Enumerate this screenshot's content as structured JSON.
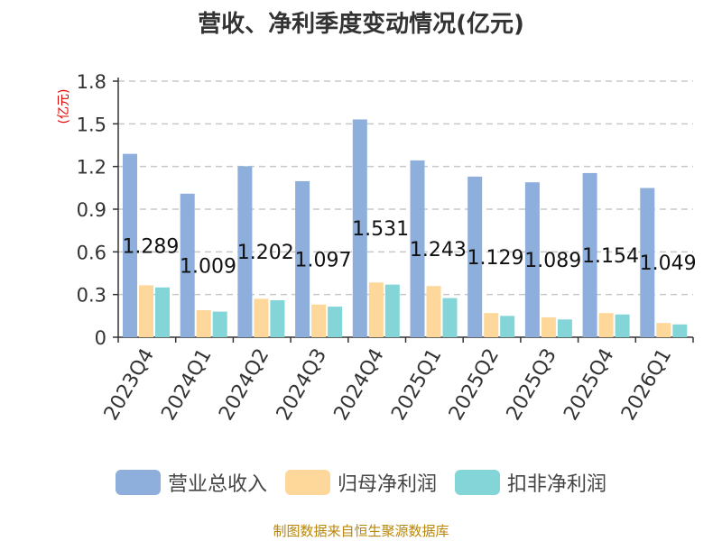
{
  "chart_data": {
    "type": "bar",
    "title": "营收、净利季度变动情况(亿元)",
    "ylabel": "(亿元)",
    "ylim": [
      0,
      1.8
    ],
    "yticks": [
      "0",
      "0.3",
      "0.6",
      "0.9",
      "1.2",
      "1.5",
      "1.8"
    ],
    "grid": true,
    "categories": [
      "2023Q4",
      "2024Q1",
      "2024Q2",
      "2024Q3",
      "2024Q4",
      "2025Q1",
      "2025Q2",
      "2025Q3",
      "2025Q4",
      "2026Q1"
    ],
    "series": [
      {
        "name": "营业总收入",
        "color": "#8eaedb",
        "values": [
          1.289,
          1.009,
          1.202,
          1.097,
          1.531,
          1.243,
          1.129,
          1.089,
          1.154,
          1.049
        ],
        "labels": [
          "1.289",
          "1.009",
          "1.202",
          "1.097",
          "1.531",
          "1.243",
          "1.129",
          "1.089",
          "1.154",
          "1.049"
        ]
      },
      {
        "name": "归母净利润",
        "color": "#fdd89a",
        "values": [
          0.365,
          0.19,
          0.27,
          0.23,
          0.385,
          0.36,
          0.17,
          0.14,
          0.17,
          0.1
        ]
      },
      {
        "name": "扣非净利润",
        "color": "#84d5d7",
        "values": [
          0.35,
          0.18,
          0.26,
          0.215,
          0.37,
          0.275,
          0.15,
          0.125,
          0.16,
          0.09
        ]
      }
    ],
    "legend_position": "bottom"
  },
  "footer": {
    "source": "制图数据来自恒生聚源数据库"
  }
}
